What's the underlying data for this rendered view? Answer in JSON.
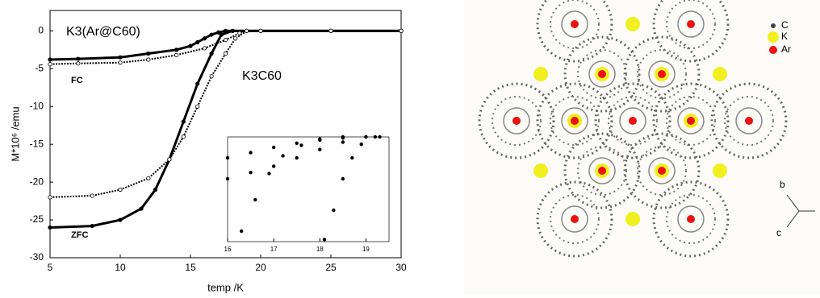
{
  "chart_data": [
    {
      "type": "scatter",
      "x_label": "temp /K",
      "y_label": "M*10⁶ /emu",
      "xlim": [
        5,
        30
      ],
      "xticks": [
        5,
        10,
        15,
        20,
        25,
        30
      ],
      "ylim": [
        -30,
        2.7
      ],
      "yticks": [
        0,
        -5,
        -10,
        -15,
        -20,
        -25,
        -30
      ],
      "annotations": [
        "K3(Ar@C60)",
        "FC",
        "K3C60",
        "ZFC"
      ],
      "series": [
        {
          "color": "#000000",
          "marker": "filled",
          "x": [
            5,
            7,
            10,
            12,
            14,
            15,
            15.5,
            16,
            16.5,
            17,
            17.5,
            18,
            20,
            25,
            30
          ],
          "values": [
            -3.8,
            -3.7,
            -3.5,
            -3.0,
            -2.5,
            -2.0,
            -1.5,
            -1.0,
            -0.5,
            -0.2,
            0,
            0,
            0,
            0,
            0
          ]
        },
        {
          "color": "#000000",
          "marker": "filled",
          "x": [
            5,
            8,
            10,
            11.5,
            12.5,
            13.5,
            14.5,
            15.5,
            16.5,
            17.2,
            18,
            20,
            25,
            30
          ],
          "values": [
            -26,
            -25.8,
            -25,
            -23.5,
            -21,
            -17,
            -12,
            -7,
            -3,
            -0.5,
            0,
            0,
            0,
            0
          ]
        },
        {
          "color": "#000000",
          "marker": "open",
          "x": [
            5,
            7,
            10,
            12,
            14,
            16,
            17.5,
            18.5,
            19,
            20,
            25,
            30
          ],
          "values": [
            -4.4,
            -4.3,
            -4.2,
            -3.8,
            -3.2,
            -2.3,
            -1.2,
            -0.3,
            0,
            0,
            0,
            0
          ]
        },
        {
          "color": "#000000",
          "marker": "open",
          "x": [
            5,
            8,
            10,
            12,
            13.5,
            14.5,
            15.5,
            16.5,
            17.5,
            18.2,
            19,
            20,
            25,
            30
          ],
          "values": [
            -22,
            -21.8,
            -21,
            -19.5,
            -17,
            -14,
            -10,
            -6,
            -3,
            -1,
            0,
            0,
            0,
            0
          ]
        }
      ]
    },
    {
      "type": "scatter",
      "xlim": [
        16,
        19.5
      ],
      "xticks": [
        16,
        17,
        18,
        19
      ],
      "ylim": [
        0,
        1
      ],
      "series": [
        {
          "color": "#000000",
          "marker": "filled",
          "x": [
            16,
            16.5,
            17,
            17.5,
            18,
            18.5,
            19,
            19.3
          ],
          "values": [
            0.8,
            0.85,
            0.9,
            0.94,
            0.97,
            0.99,
            1,
            1
          ]
        },
        {
          "color": "#000000",
          "marker": "filled",
          "x": [
            16,
            16.5,
            17,
            17.5,
            18,
            18.5,
            19
          ],
          "values": [
            0.6,
            0.66,
            0.72,
            0.8,
            0.88,
            0.95,
            1
          ]
        },
        {
          "color": "#000000",
          "marker": "filled",
          "x": [
            16.3,
            16.6,
            16.9,
            17.2,
            17.6,
            18,
            18.5
          ],
          "values": [
            0.1,
            0.4,
            0.65,
            0.82,
            0.92,
            0.98,
            1
          ]
        },
        {
          "color": "#000000",
          "marker": "filled",
          "x": [
            18.1,
            18.3,
            18.5,
            18.7,
            18.9,
            19.2
          ],
          "values": [
            0.02,
            0.3,
            0.6,
            0.8,
            0.93,
            1
          ]
        }
      ]
    }
  ],
  "structure": {
    "legend": [
      "C",
      "K",
      "Ar"
    ],
    "axes": [
      "b",
      "c"
    ]
  }
}
